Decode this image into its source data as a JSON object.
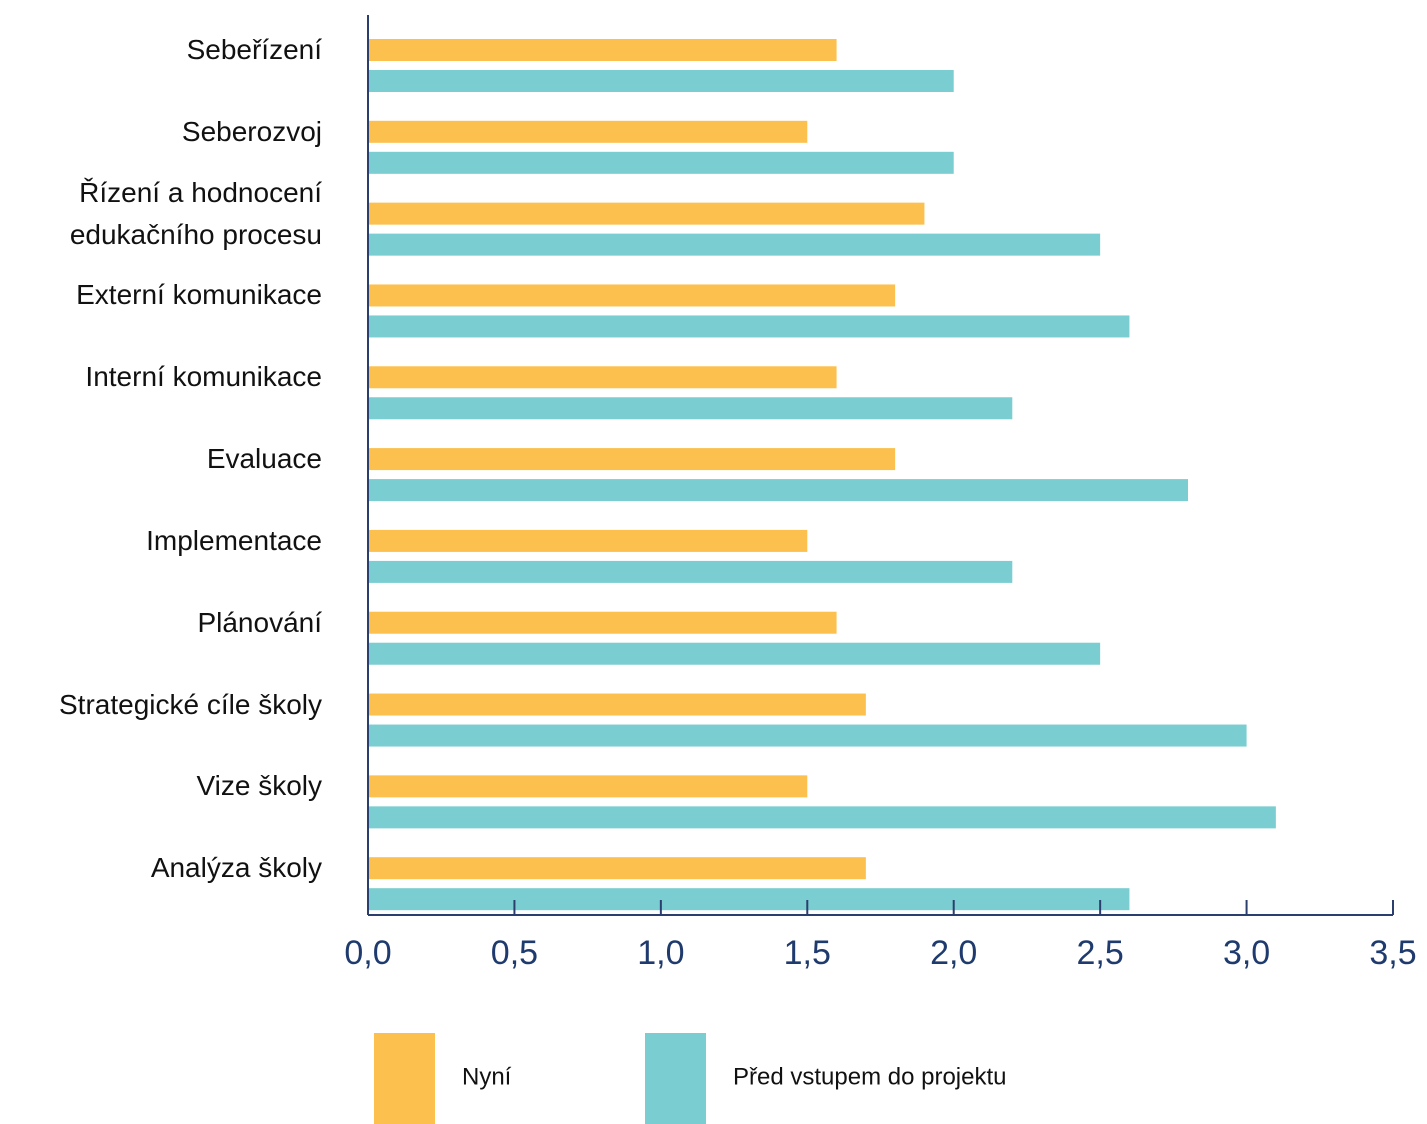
{
  "chart_data": {
    "type": "bar",
    "orientation": "horizontal",
    "categories": [
      "Sebeřízení",
      "Seberozvoj",
      "Řízení a hodnocení edukačního procesu",
      "Externí komunikace",
      "Interní komunikace",
      "Evaluace",
      "Implementace",
      "Plánování",
      "Strategické cíle školy",
      "Vize školy",
      "Analýza školy"
    ],
    "series": [
      {
        "name": "Nyní",
        "color": "#fcc04e",
        "values": [
          1.6,
          1.5,
          1.9,
          1.8,
          1.6,
          1.8,
          1.5,
          1.6,
          1.7,
          1.5,
          1.7
        ]
      },
      {
        "name": "Před vstupem do projektu",
        "color": "#7acdd0",
        "values": [
          2.0,
          2.0,
          2.5,
          2.6,
          2.2,
          2.8,
          2.2,
          2.5,
          3.0,
          3.1,
          2.6
        ]
      }
    ],
    "xlim": [
      0,
      3.5
    ],
    "xticks": [
      {
        "value": 0,
        "label": "0,0"
      },
      {
        "value": 0.5,
        "label": "0,5"
      },
      {
        "value": 1,
        "label": "1,0"
      },
      {
        "value": 1.5,
        "label": "1,5"
      },
      {
        "value": 2,
        "label": "2,0"
      },
      {
        "value": 2.5,
        "label": "2,5"
      },
      {
        "value": 3,
        "label": "3,0"
      },
      {
        "value": 3.5,
        "label": "3,5"
      }
    ],
    "legend": "bottom"
  }
}
